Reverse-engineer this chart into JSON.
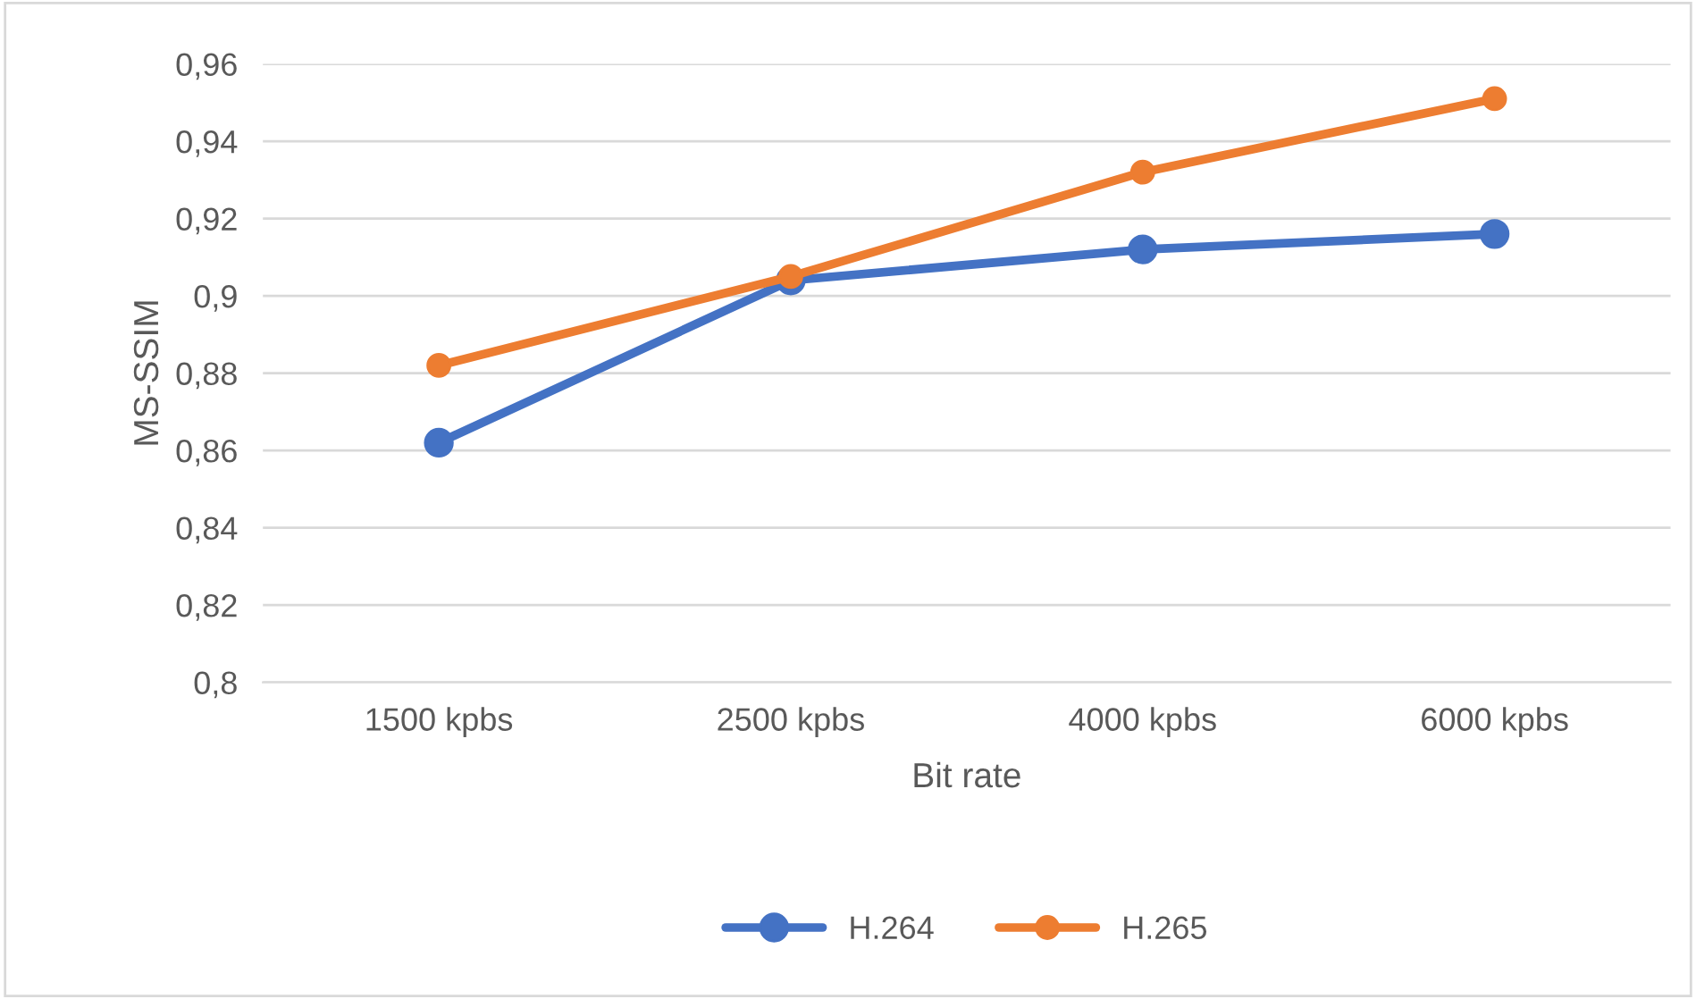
{
  "chart_data": {
    "type": "line",
    "xlabel": "Bit rate",
    "ylabel": "MS-SSIM",
    "categories": [
      "1500 kpbs",
      "2500 kpbs",
      "4000 kpbs",
      "6000 kpbs"
    ],
    "series": [
      {
        "name": "H.264",
        "color": "#4472c4",
        "values": [
          0.862,
          0.904,
          0.912,
          0.916
        ]
      },
      {
        "name": "H.265",
        "color": "#ed7d31",
        "values": [
          0.882,
          0.905,
          0.932,
          0.951
        ]
      }
    ],
    "ylim": [
      0.8,
      0.96
    ],
    "yticks": [
      {
        "value": 0.8,
        "label": "0,8"
      },
      {
        "value": 0.82,
        "label": "0,82"
      },
      {
        "value": 0.84,
        "label": "0,84"
      },
      {
        "value": 0.86,
        "label": "0,86"
      },
      {
        "value": 0.88,
        "label": "0,88"
      },
      {
        "value": 0.9,
        "label": "0,9"
      },
      {
        "value": 0.92,
        "label": "0,92"
      },
      {
        "value": 0.94,
        "label": "0,94"
      },
      {
        "value": 0.96,
        "label": "0,96"
      }
    ],
    "grid": "y",
    "legend": "bottom",
    "marker": "circle",
    "line_style": "solid"
  }
}
